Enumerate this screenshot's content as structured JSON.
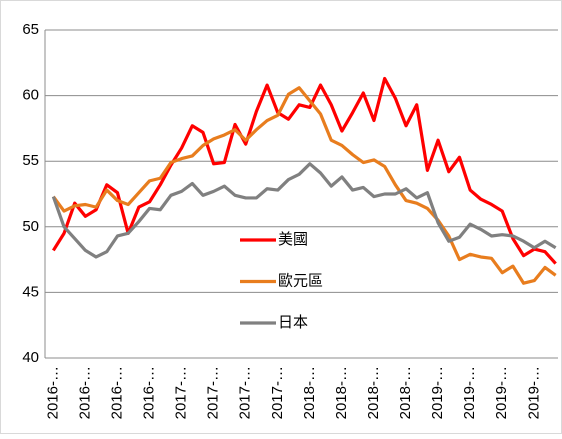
{
  "chart_data": {
    "type": "line",
    "categories": [
      "2016-…",
      null,
      null,
      "2016-…",
      null,
      null,
      "2016-…",
      null,
      null,
      "2016-…",
      null,
      null,
      "2017-…",
      null,
      null,
      "2017-…",
      null,
      null,
      "2017-…",
      null,
      null,
      "2017-…",
      null,
      null,
      "2018-…",
      null,
      null,
      "2018-…",
      null,
      null,
      "2018-…",
      null,
      null,
      "2018-…",
      null,
      null,
      "2019-…",
      null,
      null,
      "2019-…",
      null,
      null,
      "2019-…",
      null,
      null,
      "2019-…",
      null,
      null
    ],
    "series": [
      {
        "name": "美國",
        "color": "#ff0000",
        "values": [
          48.2,
          49.5,
          51.8,
          50.8,
          51.3,
          53.2,
          52.6,
          49.5,
          51.5,
          51.9,
          53.2,
          54.7,
          56.0,
          57.7,
          57.2,
          54.8,
          54.9,
          57.8,
          56.3,
          58.8,
          60.8,
          58.7,
          58.2,
          59.3,
          59.1,
          60.8,
          59.3,
          57.3,
          58.7,
          60.2,
          58.1,
          61.3,
          59.8,
          57.7,
          59.3,
          54.3,
          56.6,
          54.2,
          55.3,
          52.8,
          52.1,
          51.7,
          51.2,
          49.1,
          47.8,
          48.3,
          48.1,
          47.2
        ]
      },
      {
        "name": "歐元區",
        "color": "#e87d1e",
        "values": [
          52.3,
          51.2,
          51.6,
          51.7,
          51.5,
          52.8,
          52.0,
          51.7,
          52.6,
          53.5,
          53.7,
          54.9,
          55.2,
          55.4,
          56.2,
          56.7,
          57.0,
          57.4,
          56.6,
          57.4,
          58.1,
          58.5,
          60.1,
          60.6,
          59.6,
          58.6,
          56.6,
          56.2,
          55.5,
          54.9,
          55.1,
          54.6,
          53.2,
          52.0,
          51.8,
          51.4,
          50.5,
          49.3,
          47.5,
          47.9,
          47.7,
          47.6,
          46.5,
          47.0,
          45.7,
          45.9,
          46.9,
          46.3
        ]
      },
      {
        "name": "日本",
        "color": "#808080",
        "values": [
          52.3,
          50.0,
          49.1,
          48.2,
          47.7,
          48.1,
          49.3,
          49.5,
          50.4,
          51.4,
          51.3,
          52.4,
          52.7,
          53.3,
          52.4,
          52.7,
          53.1,
          52.4,
          52.2,
          52.2,
          52.9,
          52.8,
          53.6,
          54.0,
          54.8,
          54.1,
          53.1,
          53.8,
          52.8,
          53.0,
          52.3,
          52.5,
          52.5,
          52.9,
          52.2,
          52.6,
          50.3,
          48.9,
          49.2,
          50.2,
          49.8,
          49.3,
          49.4,
          49.3,
          48.9,
          48.4,
          48.9,
          48.4
        ]
      }
    ],
    "ylim": [
      40,
      65
    ],
    "yticks": [
      40,
      45,
      50,
      55,
      60,
      65
    ],
    "grid": true
  }
}
